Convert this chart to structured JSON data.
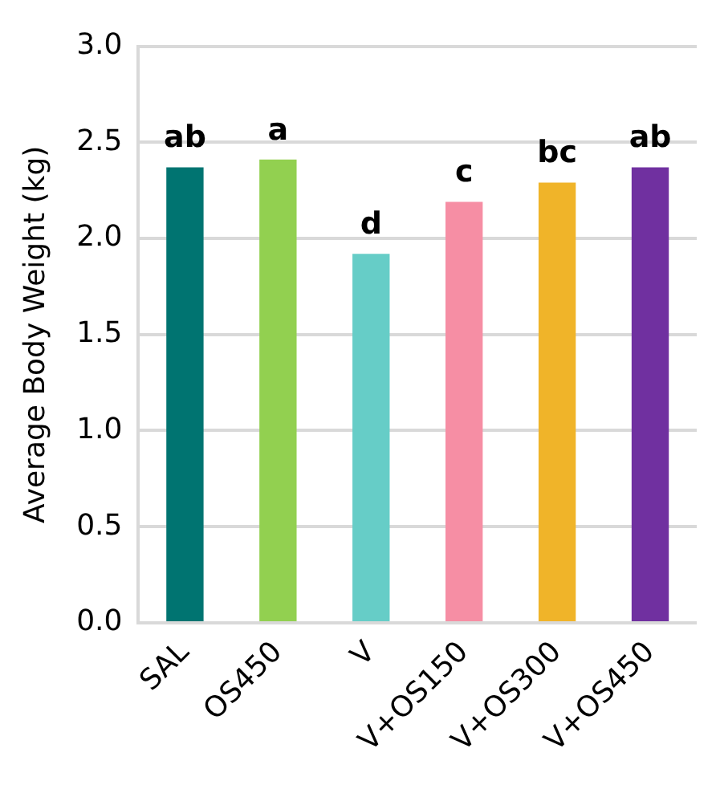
{
  "chart_data": {
    "type": "bar",
    "ylabel": "Average Body Weight (kg)",
    "categories": [
      "SAL",
      "OS450",
      "V",
      "V+OS150",
      "V+OS300",
      "V+OS450"
    ],
    "values": [
      2.37,
      2.41,
      1.92,
      2.19,
      2.29,
      2.37
    ],
    "colors": [
      "#007471",
      "#92d050",
      "#66cdc7",
      "#f68ea4",
      "#f0b429",
      "#7030a0"
    ],
    "ylim": [
      0,
      3
    ],
    "yticks": [
      {
        "value": 0,
        "label": "0.0"
      },
      0.5,
      {
        "value": 1,
        "label": "1.0"
      },
      1.5,
      {
        "value": 2,
        "label": "2.0"
      },
      2.5,
      {
        "value": 3,
        "label": "3.0"
      }
    ],
    "grid": "y",
    "legend": false,
    "annotations": [
      {
        "text": "ab",
        "x": "SAL",
        "y": 2.37
      },
      {
        "text": "a",
        "x": "OS450",
        "y": 2.41
      },
      {
        "text": "d",
        "x": "V",
        "y": 1.92
      },
      {
        "text": "c",
        "x": "V+OS150",
        "y": 2.19
      },
      {
        "text": "bc",
        "x": "V+OS300",
        "y": 2.29
      },
      {
        "text": "ab",
        "x": "V+OS450",
        "y": 2.37
      }
    ]
  }
}
